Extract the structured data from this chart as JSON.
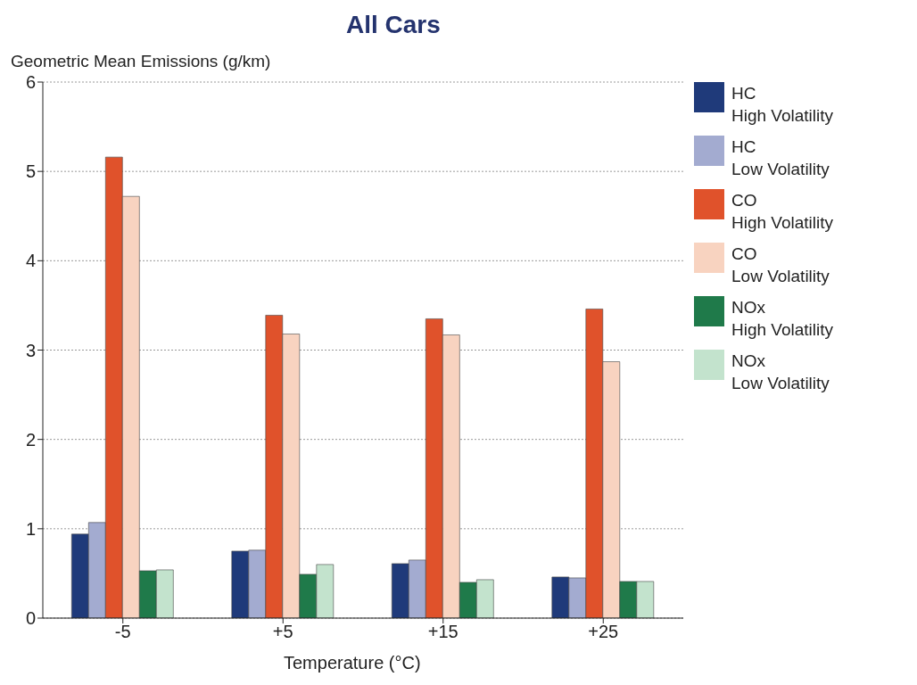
{
  "chart_data": {
    "type": "bar",
    "title": "All Cars",
    "ylabel": "Geometric Mean Emissions (g/km)",
    "xlabel": "Temperature (°C)",
    "categories": [
      "-5",
      "+5",
      "+15",
      "+25"
    ],
    "series": [
      {
        "name": "HC\nHigh Volatility",
        "color": "#1f3a7a",
        "values": [
          0.94,
          0.75,
          0.61,
          0.46
        ]
      },
      {
        "name": "HC\nLow Volatility",
        "color": "#a3abd0",
        "values": [
          1.07,
          0.76,
          0.65,
          0.45
        ]
      },
      {
        "name": "CO\nHigh Volatility",
        "color": "#e0522b",
        "values": [
          5.16,
          3.39,
          3.35,
          3.46
        ]
      },
      {
        "name": "CO\nLow Volatility",
        "color": "#f8d3c0",
        "values": [
          4.72,
          3.18,
          3.17,
          2.87
        ]
      },
      {
        "name": "NOx\nHigh Volatility",
        "color": "#1f7a4a",
        "values": [
          0.53,
          0.49,
          0.4,
          0.41
        ]
      },
      {
        "name": "NOx\nLow Volatility",
        "color": "#c3e3cd",
        "values": [
          0.54,
          0.6,
          0.43,
          0.41
        ]
      }
    ],
    "ylim": [
      0,
      6
    ],
    "yticks": [
      0,
      1,
      2,
      3,
      4,
      5,
      6
    ],
    "grid": "y",
    "legend": "right"
  }
}
